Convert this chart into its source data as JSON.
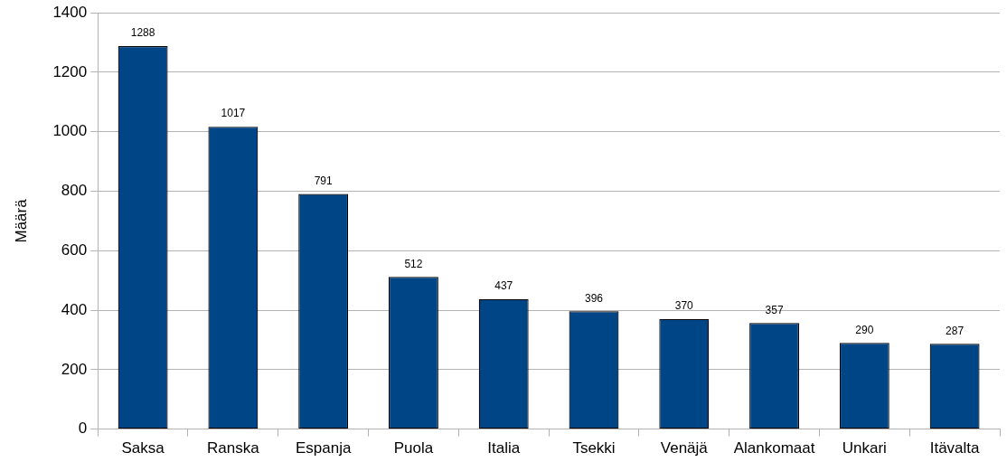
{
  "chart_data": {
    "type": "bar",
    "ylabel": "Määrä",
    "categories": [
      "Saksa",
      "Ranska",
      "Espanja",
      "Puola",
      "Italia",
      "Tsekki",
      "Venäjä",
      "Alankomaat",
      "Unkari",
      "Itävalta"
    ],
    "values": [
      1288,
      1017,
      791,
      512,
      437,
      396,
      370,
      357,
      290,
      287
    ],
    "color": "#004586",
    "ylim": [
      0,
      1400
    ],
    "yticks": [
      0,
      200,
      400,
      600,
      800,
      1000,
      1200,
      1400
    ],
    "grid": "y",
    "data_labels": true
  }
}
